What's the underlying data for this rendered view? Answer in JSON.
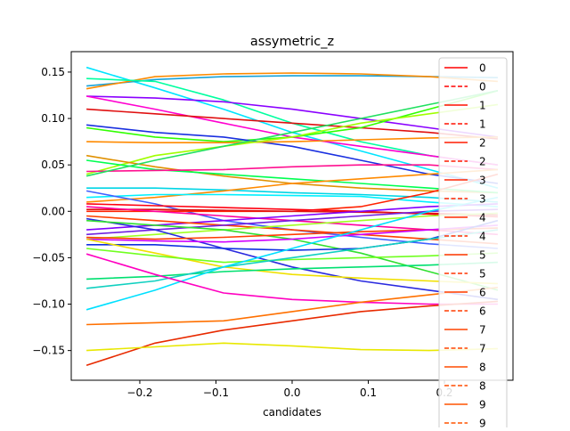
{
  "chart_data": {
    "type": "line",
    "title": "assymetric_z",
    "xlabel": "candidates",
    "ylabel": "",
    "xlim": [
      -0.29,
      0.29
    ],
    "ylim": [
      -0.182,
      0.172
    ],
    "x_ticks": [
      -0.2,
      -0.1,
      0.0,
      0.1,
      0.2
    ],
    "x_tick_labels": [
      "−0.2",
      "−0.1",
      "0.0",
      "0.1",
      "0.2"
    ],
    "y_ticks": [
      -0.15,
      -0.1,
      -0.05,
      0.0,
      0.05,
      0.1,
      0.15
    ],
    "y_tick_labels": [
      "−0.15",
      "−0.10",
      "−0.05",
      "0.00",
      "0.05",
      "0.10",
      "0.15"
    ],
    "x": [
      -0.27,
      -0.18,
      -0.09,
      0.0,
      0.09,
      0.18,
      0.27
    ],
    "legend": {
      "placement": "right (clipped)",
      "entries": [
        {
          "label": "0",
          "color": "#ff0000",
          "style": "solid"
        },
        {
          "label": "0",
          "color": "#ff0000",
          "style": "dashed"
        },
        {
          "label": "1",
          "color": "#ff1000",
          "style": "solid"
        },
        {
          "label": "1",
          "color": "#ff1000",
          "style": "dashed"
        },
        {
          "label": "2",
          "color": "#ff1c00",
          "style": "solid"
        },
        {
          "label": "2",
          "color": "#ff1c00",
          "style": "dashed"
        },
        {
          "label": "3",
          "color": "#ff2400",
          "style": "solid"
        },
        {
          "label": "3",
          "color": "#ff2400",
          "style": "dashed"
        },
        {
          "label": "4",
          "color": "#ff2c00",
          "style": "solid"
        },
        {
          "label": "4",
          "color": "#ff2c00",
          "style": "dashed"
        },
        {
          "label": "5",
          "color": "#ff3400",
          "style": "solid"
        },
        {
          "label": "5",
          "color": "#ff3400",
          "style": "dashed"
        },
        {
          "label": "6",
          "color": "#ff3c00",
          "style": "solid"
        },
        {
          "label": "6",
          "color": "#ff3c00",
          "style": "dashed"
        },
        {
          "label": "7",
          "color": "#ff4400",
          "style": "solid"
        },
        {
          "label": "7",
          "color": "#ff4400",
          "style": "dashed"
        },
        {
          "label": "8",
          "color": "#ff4c00",
          "style": "solid"
        },
        {
          "label": "8",
          "color": "#ff4c00",
          "style": "dashed"
        },
        {
          "label": "9",
          "color": "#ff5400",
          "style": "solid"
        },
        {
          "label": "9",
          "color": "#ff5400",
          "style": "dashed"
        }
      ]
    },
    "series": [
      {
        "color": "#00e5ff",
        "values": [
          0.155,
          0.133,
          0.11,
          0.085,
          0.065,
          0.045,
          0.025
        ]
      },
      {
        "color": "#17a2d8",
        "values": [
          0.135,
          0.142,
          0.145,
          0.146,
          0.146,
          0.145,
          0.144
        ]
      },
      {
        "color": "#ff8a00",
        "values": [
          0.132,
          0.145,
          0.148,
          0.149,
          0.148,
          0.145,
          0.14
        ]
      },
      {
        "color": "#00ffa0",
        "values": [
          0.143,
          0.14,
          0.12,
          0.095,
          0.075,
          0.06,
          0.05
        ]
      },
      {
        "color": "#8a00ff",
        "values": [
          0.124,
          0.122,
          0.118,
          0.11,
          0.1,
          0.09,
          0.08
        ]
      },
      {
        "color": "#ff00d0",
        "values": [
          0.124,
          0.11,
          0.095,
          0.08,
          0.07,
          0.06,
          0.05
        ]
      },
      {
        "color": "#e01010",
        "values": [
          0.11,
          0.105,
          0.1,
          0.095,
          0.09,
          0.085,
          0.078
        ]
      },
      {
        "color": "#30ff00",
        "values": [
          0.09,
          0.08,
          0.075,
          0.08,
          0.09,
          0.11,
          0.13
        ]
      },
      {
        "color": "#1a30e0",
        "values": [
          0.093,
          0.085,
          0.08,
          0.07,
          0.055,
          0.04,
          0.03
        ]
      },
      {
        "color": "#ff8a00",
        "values": [
          0.075,
          0.074,
          0.074,
          0.075,
          0.077,
          0.079,
          0.08
        ]
      },
      {
        "color": "#a0ff00",
        "values": [
          0.04,
          0.06,
          0.07,
          0.08,
          0.095,
          0.105,
          0.115
        ]
      },
      {
        "color": "#e09000",
        "values": [
          0.06,
          0.048,
          0.038,
          0.03,
          0.025,
          0.022,
          0.02
        ]
      },
      {
        "color": "#00ff50",
        "values": [
          0.055,
          0.045,
          0.04,
          0.035,
          0.03,
          0.025,
          0.02
        ]
      },
      {
        "color": "#ff1090",
        "values": [
          0.043,
          0.044,
          0.045,
          0.048,
          0.05,
          0.05,
          0.045
        ]
      },
      {
        "color": "#20e060",
        "values": [
          0.038,
          0.055,
          0.07,
          0.085,
          0.1,
          0.115,
          0.13
        ]
      },
      {
        "color": "#00d5e5",
        "values": [
          0.025,
          0.025,
          0.023,
          0.02,
          0.018,
          0.015,
          0.01
        ]
      },
      {
        "color": "#ff8a00",
        "values": [
          0.01,
          0.015,
          0.022,
          0.03,
          0.035,
          0.04,
          0.045
        ]
      },
      {
        "color": "#00f0ff",
        "values": [
          0.015,
          0.018,
          0.018,
          0.017,
          0.016,
          0.01,
          0.005
        ]
      },
      {
        "color": "#4060ff",
        "values": [
          0.022,
          0.008,
          -0.01,
          -0.02,
          -0.028,
          -0.035,
          -0.04
        ]
      },
      {
        "color": "#ff2000",
        "values": [
          0.0,
          0.0,
          0.0,
          0.0,
          0.005,
          0.02,
          0.04
        ]
      },
      {
        "color": "#ff0010",
        "values": [
          0.008,
          0.006,
          0.004,
          0.002,
          0.0,
          -0.003,
          -0.006
        ]
      },
      {
        "color": "#e01010",
        "values": [
          0.002,
          0.002,
          0.001,
          0.0,
          -0.001,
          -0.002,
          -0.004
        ]
      },
      {
        "color": "#ff00a0",
        "values": [
          0.005,
          0.0,
          -0.005,
          -0.01,
          -0.015,
          -0.02,
          -0.025
        ]
      },
      {
        "color": "#8000ff",
        "values": [
          -0.02,
          -0.015,
          -0.01,
          -0.005,
          0.0,
          0.005,
          0.008
        ]
      },
      {
        "color": "#ff4000",
        "values": [
          -0.005,
          -0.01,
          -0.015,
          -0.02,
          -0.025,
          -0.03,
          -0.035
        ]
      },
      {
        "color": "#7020e0",
        "values": [
          -0.025,
          -0.02,
          -0.015,
          -0.01,
          -0.005,
          0.0,
          0.002
        ]
      },
      {
        "color": "#a0ff20",
        "values": [
          -0.03,
          -0.025,
          -0.02,
          -0.015,
          -0.01,
          -0.005,
          -0.002
        ]
      },
      {
        "color": "#2a2adf",
        "values": [
          -0.008,
          -0.02,
          -0.04,
          -0.06,
          -0.075,
          -0.085,
          -0.095
        ]
      },
      {
        "color": "#30e030",
        "values": [
          -0.01,
          -0.015,
          -0.02,
          -0.03,
          -0.045,
          -0.065,
          -0.085
        ]
      },
      {
        "color": "#ff3c00",
        "values": [
          -0.028,
          -0.03,
          -0.028,
          -0.025,
          -0.022,
          -0.02,
          -0.018
        ]
      },
      {
        "color": "#d000ff",
        "values": [
          -0.03,
          -0.032,
          -0.033,
          -0.03,
          -0.025,
          -0.02,
          -0.015
        ]
      },
      {
        "color": "#1030e0",
        "values": [
          -0.036,
          -0.036,
          -0.04,
          -0.042,
          -0.04,
          -0.03,
          -0.01
        ]
      },
      {
        "color": "#f0e000",
        "values": [
          -0.03,
          -0.045,
          -0.06,
          -0.068,
          -0.072,
          -0.075,
          -0.078
        ]
      },
      {
        "color": "#70ff20",
        "values": [
          -0.04,
          -0.048,
          -0.055,
          -0.052,
          -0.05,
          -0.048,
          -0.045
        ]
      },
      {
        "color": "#00e070",
        "values": [
          -0.073,
          -0.07,
          -0.065,
          -0.062,
          -0.06,
          -0.058,
          -0.055
        ]
      },
      {
        "color": "#10d0c0",
        "values": [
          -0.083,
          -0.075,
          -0.06,
          -0.05,
          -0.04,
          -0.03,
          -0.02
        ]
      },
      {
        "color": "#00e0ff",
        "values": [
          -0.106,
          -0.085,
          -0.06,
          -0.04,
          -0.02,
          0.0,
          0.015
        ]
      },
      {
        "color": "#ff00c0",
        "values": [
          -0.046,
          -0.068,
          -0.088,
          -0.095,
          -0.098,
          -0.1,
          -0.1
        ]
      },
      {
        "color": "#ff7000",
        "values": [
          -0.122,
          -0.12,
          -0.118,
          -0.108,
          -0.098,
          -0.09,
          -0.082
        ]
      },
      {
        "color": "#e82a00",
        "values": [
          -0.166,
          -0.142,
          -0.128,
          -0.118,
          -0.108,
          -0.102,
          -0.097
        ]
      },
      {
        "color": "#e8e800",
        "values": [
          -0.15,
          -0.146,
          -0.142,
          -0.145,
          -0.149,
          -0.15,
          -0.148
        ]
      }
    ]
  }
}
